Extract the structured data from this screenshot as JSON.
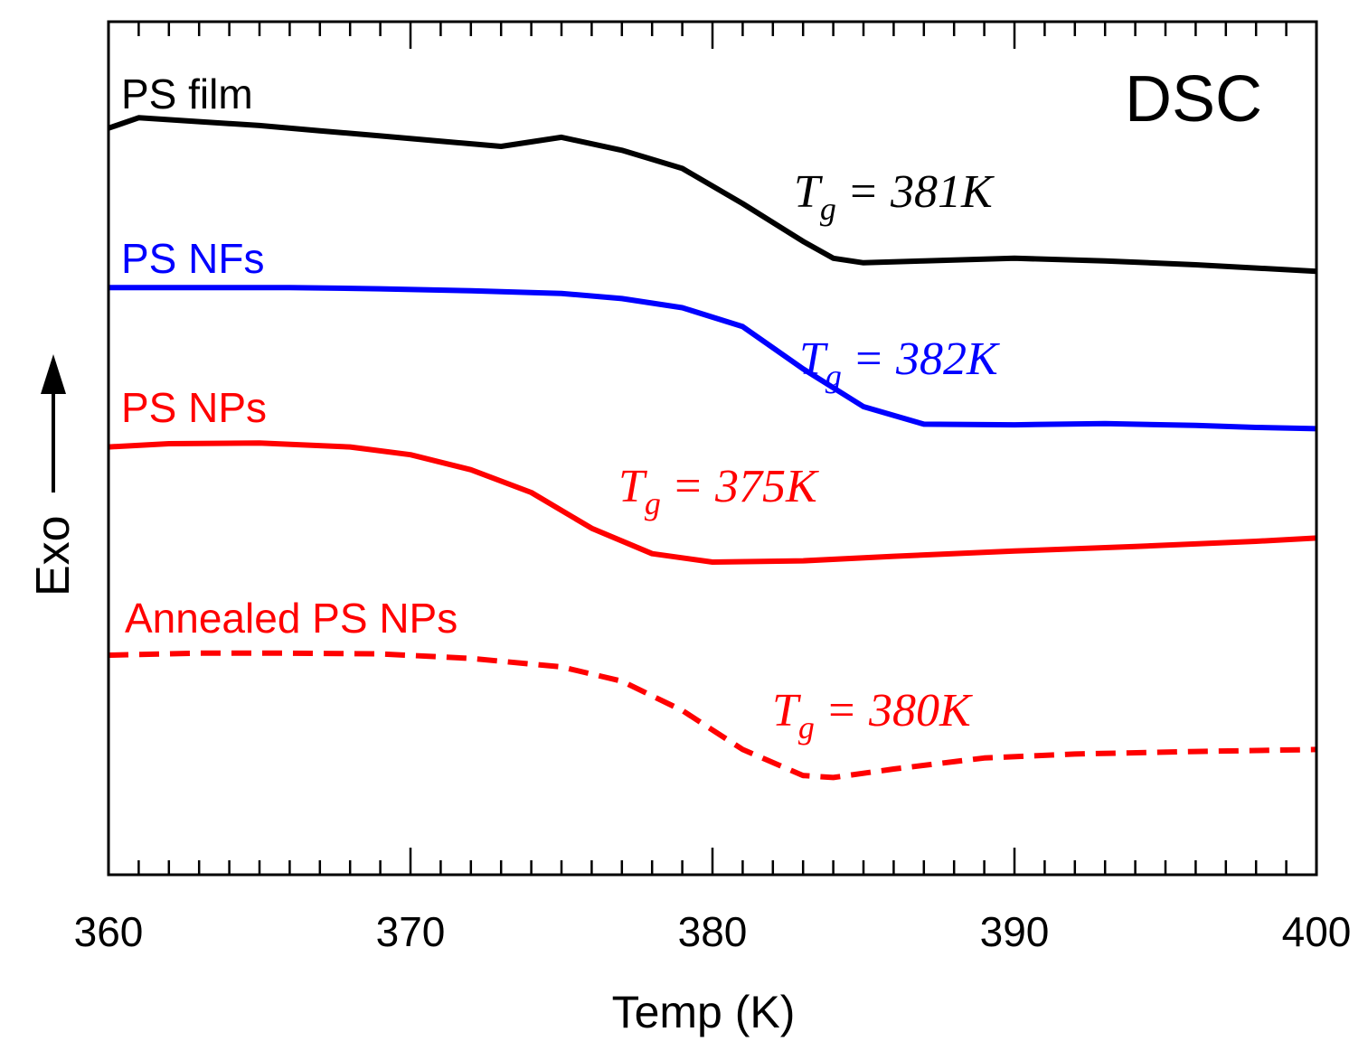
{
  "chart_data": {
    "type": "line",
    "title": "",
    "panel_label": "DSC",
    "xlabel": "Temp (K)",
    "ylabel": "Exo",
    "ylabel_arrow": true,
    "xlim": [
      360,
      400
    ],
    "xticks": [
      360,
      370,
      380,
      390,
      400
    ],
    "yticks": [],
    "grid": false,
    "x_minor_step": 1,
    "series": [
      {
        "name": "PS film",
        "color": "#000000",
        "dashed": false,
        "tg_text": "= 381K",
        "points": [
          [
            360,
            0.81
          ],
          [
            361,
            0.826
          ],
          [
            363,
            0.82
          ],
          [
            365,
            0.814
          ],
          [
            367,
            0.806
          ],
          [
            369,
            0.798
          ],
          [
            371,
            0.79
          ],
          [
            373,
            0.782
          ],
          [
            375,
            0.796
          ],
          [
            377,
            0.776
          ],
          [
            379,
            0.748
          ],
          [
            381,
            0.694
          ],
          [
            383,
            0.636
          ],
          [
            384,
            0.61
          ],
          [
            385,
            0.603
          ],
          [
            387,
            0.606
          ],
          [
            390,
            0.61
          ],
          [
            393,
            0.606
          ],
          [
            396,
            0.6
          ],
          [
            398,
            0.595
          ],
          [
            400,
            0.59
          ]
        ]
      },
      {
        "name": "PS NFs",
        "color": "#0000ff",
        "dashed": false,
        "tg_text": "= 382K",
        "points": [
          [
            360,
            0.565
          ],
          [
            363,
            0.565
          ],
          [
            366,
            0.565
          ],
          [
            369,
            0.563
          ],
          [
            372,
            0.56
          ],
          [
            375,
            0.556
          ],
          [
            377,
            0.548
          ],
          [
            379,
            0.534
          ],
          [
            381,
            0.505
          ],
          [
            383,
            0.44
          ],
          [
            385,
            0.382
          ],
          [
            387,
            0.355
          ],
          [
            390,
            0.354
          ],
          [
            393,
            0.356
          ],
          [
            396,
            0.353
          ],
          [
            398,
            0.35
          ],
          [
            400,
            0.348
          ]
        ]
      },
      {
        "name": "PS NPs",
        "color": "#ff0000",
        "dashed": false,
        "tg_text": "= 375K",
        "points": [
          [
            360,
            0.32
          ],
          [
            362,
            0.325
          ],
          [
            365,
            0.326
          ],
          [
            368,
            0.32
          ],
          [
            370,
            0.308
          ],
          [
            372,
            0.285
          ],
          [
            374,
            0.25
          ],
          [
            376,
            0.195
          ],
          [
            378,
            0.156
          ],
          [
            380,
            0.143
          ],
          [
            383,
            0.145
          ],
          [
            386,
            0.152
          ],
          [
            390,
            0.16
          ],
          [
            394,
            0.167
          ],
          [
            398,
            0.175
          ],
          [
            400,
            0.18
          ]
        ]
      },
      {
        "name": "Annealed PS NPs",
        "color": "#ff0000",
        "dashed": true,
        "tg_text": "= 380K",
        "points": [
          [
            360,
            0.0
          ],
          [
            363,
            0.003
          ],
          [
            366,
            0.003
          ],
          [
            369,
            0.002
          ],
          [
            372,
            -0.005
          ],
          [
            375,
            -0.018
          ],
          [
            377,
            -0.04
          ],
          [
            379,
            -0.085
          ],
          [
            381,
            -0.145
          ],
          [
            383,
            -0.185
          ],
          [
            384,
            -0.188
          ],
          [
            386,
            -0.175
          ],
          [
            389,
            -0.158
          ],
          [
            392,
            -0.152
          ],
          [
            396,
            -0.148
          ],
          [
            400,
            -0.145
          ]
        ]
      }
    ],
    "tg_symbol": "T",
    "tg_subscript": "g"
  }
}
